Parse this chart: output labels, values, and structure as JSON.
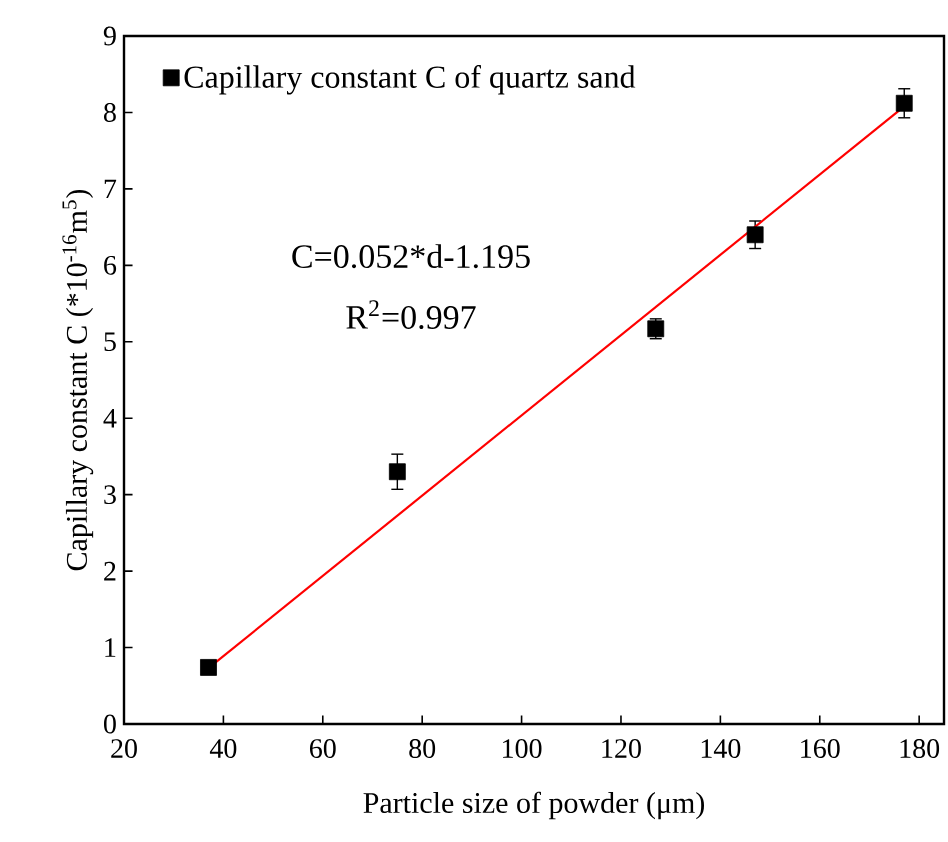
{
  "chart_data": {
    "type": "scatter",
    "xlabel": "Particle size of powder (μm)",
    "ylabel": "Capillary constant C (*10$^{-16}$m$^{5}$)",
    "xlim": [
      20,
      185
    ],
    "xticks": [
      20,
      40,
      60,
      80,
      100,
      120,
      140,
      160,
      180
    ],
    "ylim": [
      0,
      9
    ],
    "yticks": [
      0,
      1,
      2,
      3,
      4,
      5,
      6,
      7,
      8,
      9
    ],
    "legend": "top left",
    "marker": "square",
    "grid": false,
    "series": [
      {
        "name": "Capillary constant C of quartz sand",
        "color": "#000000",
        "x": [
          37,
          75,
          127,
          147,
          177
        ],
        "values": [
          0.74,
          3.3,
          5.17,
          6.4,
          8.12
        ],
        "errors": [
          0.05,
          0.23,
          0.13,
          0.18,
          0.19
        ]
      },
      {
        "type": "line",
        "color": "#ff0000",
        "marker": "none",
        "x": [
          37,
          177
        ],
        "values": [
          0.73,
          8.08
        ]
      }
    ],
    "annotations": [
      "C=0.052*d-1.195",
      "R$^{2}$=0.997"
    ]
  }
}
